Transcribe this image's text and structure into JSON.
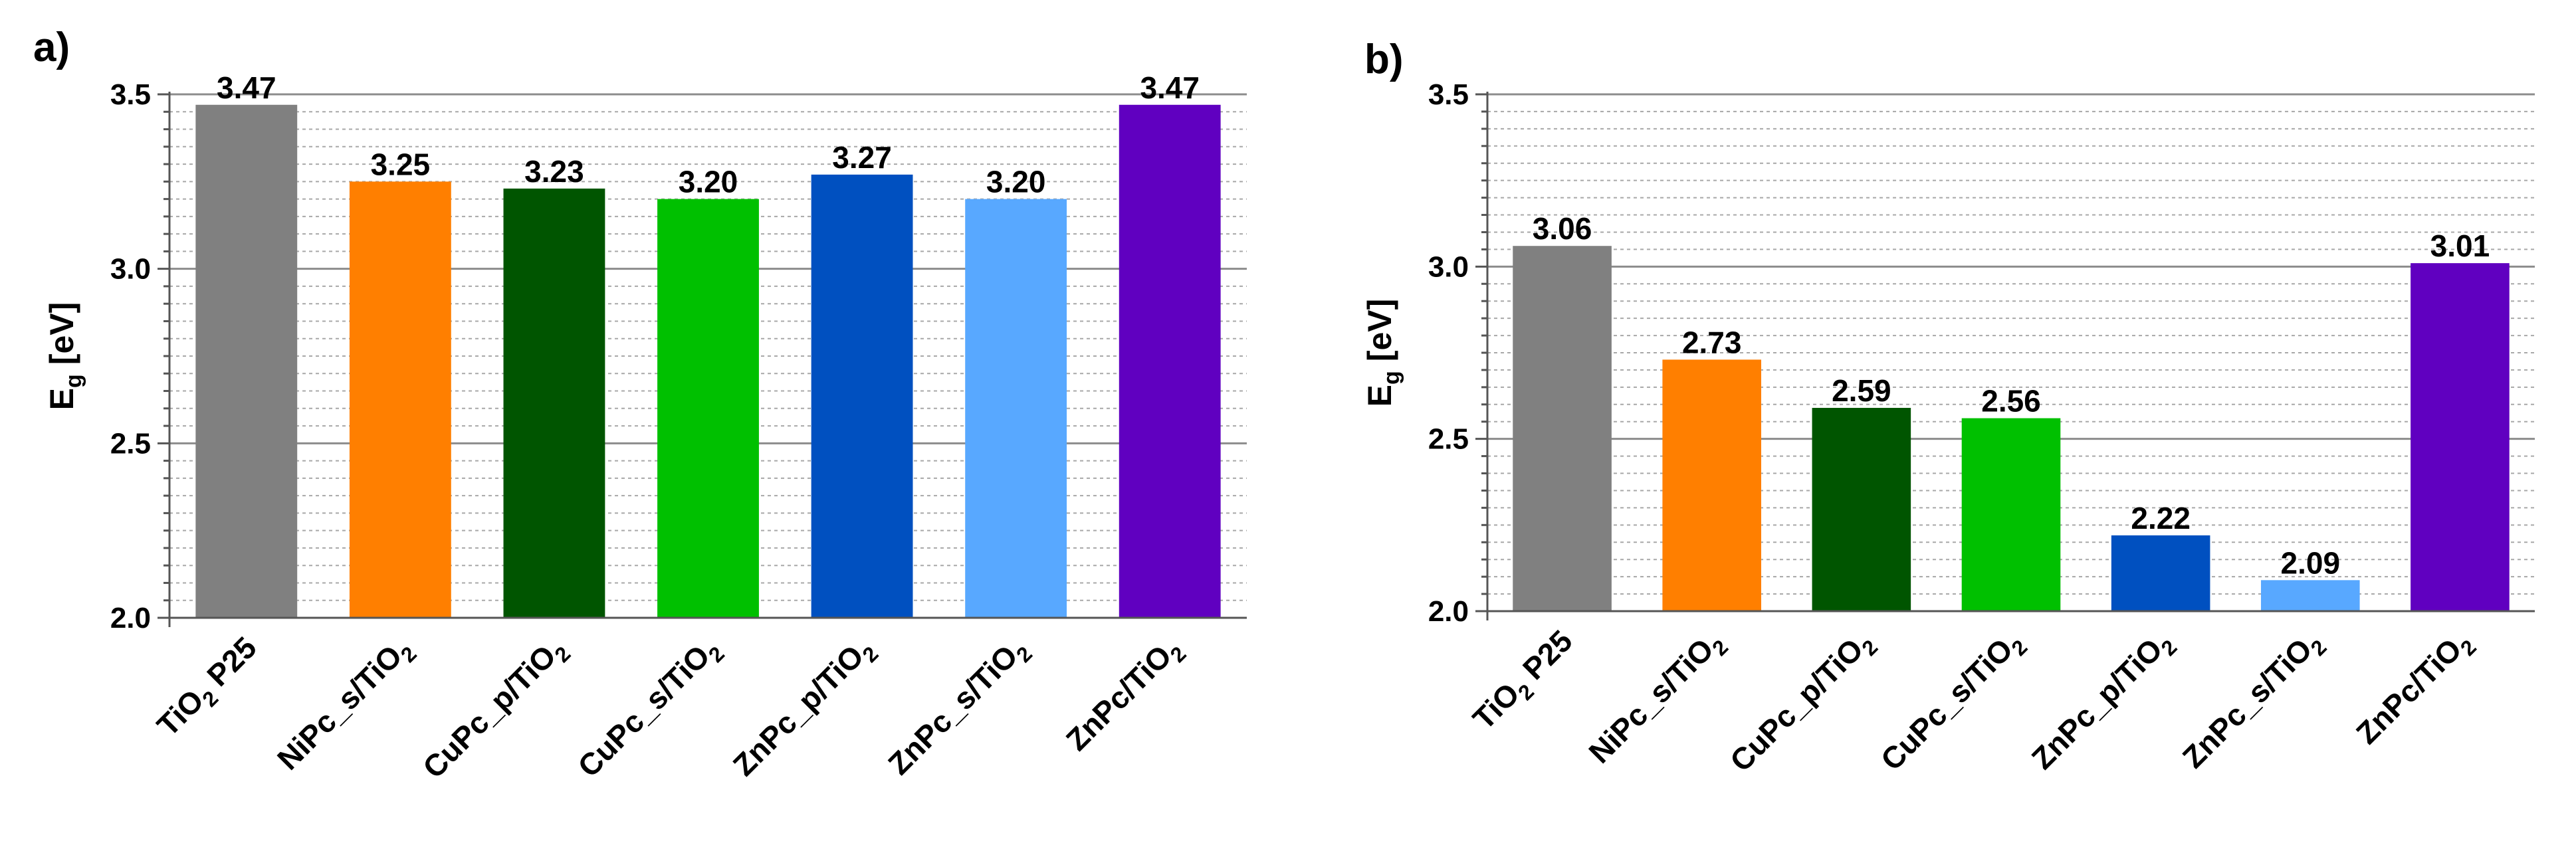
{
  "chart_data": [
    {
      "panel_label": "a)",
      "type": "bar",
      "ylabel": {
        "main": "E",
        "sub": "g",
        "unit": "[eV]"
      },
      "ylim": [
        2.0,
        3.5
      ],
      "yticks": [
        "2.0",
        "2.5",
        "3.0",
        "3.5"
      ],
      "ytick_values": [
        2.0,
        2.5,
        3.0,
        3.5
      ],
      "grid": true,
      "categories": [
        {
          "main": "TiO",
          "sub": "2",
          "tail": " P25"
        },
        {
          "main": "NiPc_s/TiO",
          "sub": "2",
          "tail": ""
        },
        {
          "main": "CuPc_p/TiO",
          "sub": "2",
          "tail": ""
        },
        {
          "main": "CuPc_s/TiO",
          "sub": "2",
          "tail": ""
        },
        {
          "main": "ZnPc_p/TiO",
          "sub": "2",
          "tail": ""
        },
        {
          "main": "ZnPc_s/TiO",
          "sub": "2",
          "tail": ""
        },
        {
          "main": "ZnPc/TiO",
          "sub": "2",
          "tail": ""
        }
      ],
      "values": [
        3.47,
        3.25,
        3.23,
        3.2,
        3.27,
        3.2,
        3.47
      ],
      "value_labels": [
        "3.47",
        "3.25",
        "3.23",
        "3.20",
        "3.27",
        "3.20",
        "3.47"
      ],
      "colors": [
        "#808080",
        "#ff7f00",
        "#005500",
        "#00c000",
        "#0050c0",
        "#58a8ff",
        "#6000c0"
      ]
    },
    {
      "panel_label": "b)",
      "type": "bar",
      "ylabel": {
        "main": "E",
        "sub": "g",
        "unit": "[eV]"
      },
      "ylim": [
        2.0,
        3.5
      ],
      "yticks": [
        "2.0",
        "2.5",
        "3.0",
        "3.5"
      ],
      "ytick_values": [
        2.0,
        2.5,
        3.0,
        3.5
      ],
      "grid": true,
      "categories": [
        {
          "main": "TiO",
          "sub": "2",
          "tail": " P25"
        },
        {
          "main": "NiPc_s/TiO",
          "sub": "2",
          "tail": ""
        },
        {
          "main": "CuPc_p/TiO",
          "sub": "2",
          "tail": ""
        },
        {
          "main": "CuPc_s/TiO",
          "sub": "2",
          "tail": ""
        },
        {
          "main": "ZnPc_p/TiO",
          "sub": "2",
          "tail": ""
        },
        {
          "main": "ZnPc_s/TiO",
          "sub": "2",
          "tail": ""
        },
        {
          "main": "ZnPc/TiO",
          "sub": "2",
          "tail": ""
        }
      ],
      "values": [
        3.06,
        2.73,
        2.59,
        2.56,
        2.22,
        2.09,
        3.01
      ],
      "value_labels": [
        "3.06",
        "2.73",
        "2.59",
        "2.56",
        "2.22",
        "2.09",
        "3.01"
      ],
      "colors": [
        "#808080",
        "#ff7f00",
        "#005500",
        "#00c000",
        "#0050c0",
        "#58a8ff",
        "#6000c0"
      ]
    }
  ]
}
